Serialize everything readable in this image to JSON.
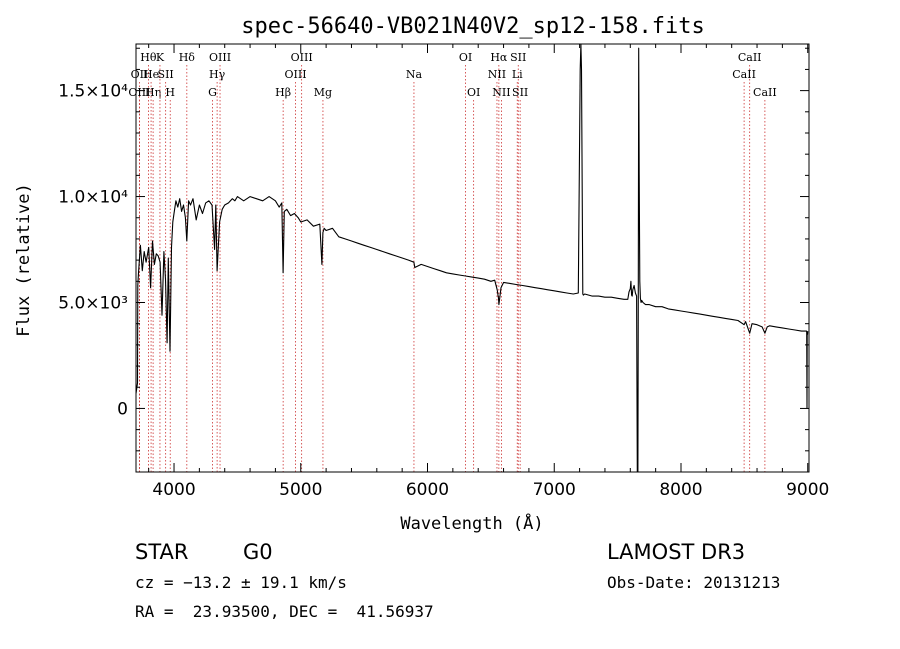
{
  "chart_data": {
    "type": "line",
    "title": "spec-56640-VB021N40V2_sp12-158.fits",
    "xlabel": "Wavelength (Å)",
    "ylabel": "Flux (relative)",
    "xlim": [
      3700,
      9010
    ],
    "ylim": [
      -3000,
      17200
    ],
    "x_ticks": [
      4000,
      5000,
      6000,
      7000,
      8000,
      9000
    ],
    "x_tick_labels": [
      "4000",
      "5000",
      "6000",
      "7000",
      "8000",
      "9000"
    ],
    "y_ticks": [
      0,
      5000,
      10000,
      15000
    ],
    "y_tick_labels": [
      "0",
      "5.0×10³",
      "1.0×10⁴",
      "1.5×10⁴"
    ],
    "grid": false,
    "series": [
      {
        "name": "flux",
        "color": "#000000",
        "x": [
          3700,
          3712,
          3714,
          3720,
          3735,
          3750,
          3765,
          3780,
          3800,
          3815,
          3830,
          3845,
          3860,
          3875,
          3890,
          3905,
          3920,
          3933,
          3945,
          3955,
          3968,
          3980,
          3990,
          4000,
          4015,
          4030,
          4045,
          4060,
          4075,
          4090,
          4101,
          4115,
          4130,
          4150,
          4175,
          4200,
          4225,
          4250,
          4275,
          4300,
          4320,
          4330,
          4340,
          4360,
          4380,
          4400,
          4430,
          4460,
          4480,
          4500,
          4550,
          4600,
          4650,
          4700,
          4750,
          4800,
          4830,
          4850,
          4861,
          4870,
          4890,
          4920,
          4950,
          4980,
          5000,
          5050,
          5100,
          5150,
          5167,
          5175,
          5185,
          5200,
          5250,
          5300,
          5350,
          5400,
          5450,
          5500,
          5550,
          5600,
          5650,
          5700,
          5750,
          5800,
          5850,
          5893,
          5900,
          5950,
          6000,
          6050,
          6100,
          6150,
          6200,
          6250,
          6300,
          6350,
          6400,
          6450,
          6500,
          6530,
          6550,
          6560,
          6563,
          6570,
          6580,
          6600,
          6650,
          6700,
          6750,
          6800,
          6850,
          6900,
          6950,
          7000,
          7050,
          7100,
          7150,
          7190,
          7205,
          7210,
          7215,
          7225,
          7230,
          7240,
          7300,
          7350,
          7400,
          7450,
          7500,
          7550,
          7580,
          7590,
          7600,
          7605,
          7610,
          7615,
          7620,
          7630,
          7640,
          7650,
          7655,
          7660,
          7663,
          7666,
          7670,
          7675,
          7680,
          7685,
          7690,
          7700,
          7720,
          7750,
          7800,
          7850,
          7900,
          7950,
          8000,
          8050,
          8100,
          8150,
          8200,
          8250,
          8300,
          8350,
          8400,
          8450,
          8498,
          8510,
          8542,
          8560,
          8600,
          8640,
          8662,
          8680,
          8700,
          8750,
          8800,
          8850,
          8900,
          8950,
          8980,
          8990,
          8992,
          8994,
          8996,
          8998,
          9000
        ],
        "values": [
          700,
          1200,
          5800,
          6400,
          7700,
          6500,
          7400,
          6900,
          7600,
          5700,
          7900,
          6800,
          7300,
          7200,
          6900,
          4400,
          7400,
          6100,
          3100,
          7100,
          2700,
          7600,
          8800,
          9200,
          9800,
          9500,
          9900,
          9300,
          9600,
          9000,
          7900,
          9800,
          9600,
          9900,
          8900,
          9600,
          9200,
          9700,
          9800,
          9600,
          7500,
          9600,
          6500,
          8800,
          9400,
          9600,
          9700,
          9900,
          9800,
          10000,
          9800,
          10000,
          9900,
          9800,
          10000,
          9800,
          9500,
          9700,
          6400,
          9300,
          9400,
          9100,
          9200,
          9000,
          8800,
          8900,
          8600,
          8700,
          6800,
          8300,
          8500,
          8400,
          8500,
          8100,
          8000,
          7900,
          7800,
          7700,
          7600,
          7500,
          7400,
          7300,
          7200,
          7100,
          7000,
          6900,
          6650,
          6800,
          6700,
          6600,
          6500,
          6400,
          6350,
          6300,
          6250,
          6200,
          6150,
          6100,
          6000,
          6050,
          5600,
          5200,
          4900,
          5200,
          5700,
          5950,
          5900,
          5850,
          5800,
          5750,
          5700,
          5650,
          5600,
          5550,
          5500,
          5450,
          5400,
          5450,
          16000,
          17200,
          16000,
          5400,
          5350,
          5400,
          5300,
          5300,
          5250,
          5250,
          5200,
          5150,
          5150,
          5500,
          5650,
          6000,
          5350,
          5300,
          5600,
          5800,
          5450,
          5300,
          -3100,
          -3100,
          5800,
          17000,
          11000,
          6000,
          5200,
          5000,
          5100,
          5000,
          4900,
          4900,
          4800,
          4800,
          4700,
          4650,
          4600,
          4550,
          4500,
          4450,
          4400,
          4350,
          4300,
          4250,
          4200,
          4150,
          3950,
          4100,
          3550,
          4000,
          3950,
          3850,
          3550,
          3850,
          3900,
          3850,
          3800,
          3750,
          3700,
          3650,
          3650,
          3650,
          3600,
          0,
          3600,
          3500,
          3650
        ]
      }
    ],
    "line_markers": [
      {
        "label": "Hθ",
        "x": 3798,
        "row": 1
      },
      {
        "label": "OII",
        "x": 3727,
        "row": 2
      },
      {
        "label": "OIII",
        "x": 3727,
        "row": 3
      },
      {
        "label": "He",
        "x": 3819,
        "row": 2
      },
      {
        "label": "Hη",
        "x": 3835,
        "row": 3
      },
      {
        "label": "K",
        "x": 3889,
        "row": 1
      },
      {
        "label": "SII",
        "x": 3934,
        "row": 2
      },
      {
        "label": "H",
        "x": 3970,
        "row": 3
      },
      {
        "label": "Hδ",
        "x": 4101,
        "row": 1
      },
      {
        "label": "OIII",
        "x": 4363,
        "row": 1
      },
      {
        "label": "Hγ",
        "x": 4340,
        "row": 2
      },
      {
        "label": "G",
        "x": 4304,
        "row": 3
      },
      {
        "label": "OIII",
        "x": 5007,
        "row": 1
      },
      {
        "label": "OIII",
        "x": 4959,
        "row": 2
      },
      {
        "label": "Hβ",
        "x": 4861,
        "row": 3
      },
      {
        "label": "Mg",
        "x": 5175,
        "row": 3
      },
      {
        "label": "Na",
        "x": 5893,
        "row": 2
      },
      {
        "label": "OI",
        "x": 6300,
        "row": 1
      },
      {
        "label": "OI",
        "x": 6364,
        "row": 3
      },
      {
        "label": "Hα",
        "x": 6563,
        "row": 1
      },
      {
        "label": "SII",
        "x": 6716,
        "row": 1
      },
      {
        "label": "NII",
        "x": 6548,
        "row": 2
      },
      {
        "label": "Li",
        "x": 6708,
        "row": 2
      },
      {
        "label": "NII",
        "x": 6583,
        "row": 3
      },
      {
        "label": "SII",
        "x": 6731,
        "row": 3
      },
      {
        "label": "CaII",
        "x": 8542,
        "row": 1
      },
      {
        "label": "CaII",
        "x": 8498,
        "row": 2
      },
      {
        "label": "CaII",
        "x": 8662,
        "row": 3
      }
    ],
    "marker_color": "#cc3333"
  },
  "info": {
    "class_label": "STAR",
    "subclass": "G0",
    "survey": "LAMOST DR3",
    "cz_text": "cz = −13.2 ± 19.1 km/s",
    "obs_date": "Obs-Date: 20131213",
    "coords": "RA =  23.93500, DEC =  41.56937"
  }
}
